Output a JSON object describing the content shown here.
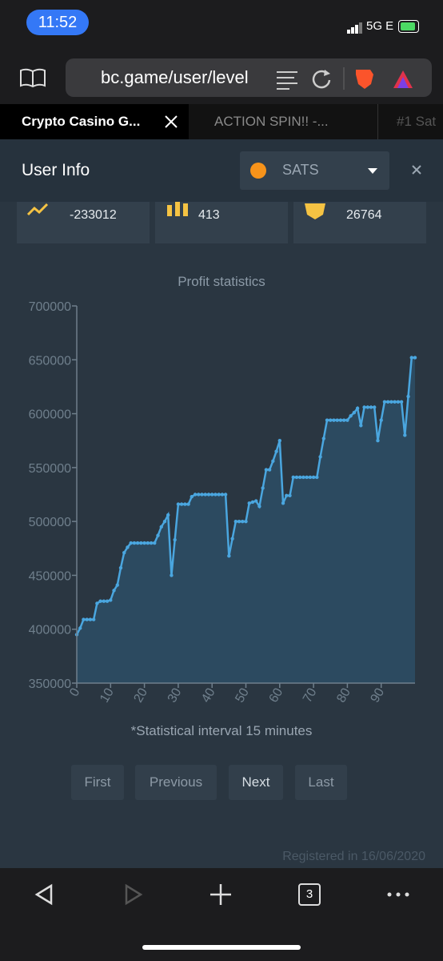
{
  "status_bar": {
    "time": "11:52",
    "network": "5G E"
  },
  "browser": {
    "url": "bc.game/user/level",
    "tabs": [
      "Crypto Casino G...",
      "ACTION SPIN!! -...",
      "#1 Sat"
    ],
    "tab_count": 3
  },
  "modal": {
    "title": "User Info",
    "currency": "SATS",
    "stats": [
      -233012,
      413,
      26764
    ],
    "note": "*Statistical interval 15 minutes",
    "buttons": [
      "First",
      "Previous",
      "Next",
      "Last"
    ],
    "registered": "Registered in 16/06/2020"
  },
  "chart_data": {
    "type": "area",
    "title": "Profit statistics",
    "color": "#4aa6df",
    "fill": "#2c4a60",
    "x": [
      0,
      1,
      2,
      3,
      4,
      5,
      6,
      7,
      8,
      9,
      10,
      11,
      12,
      13,
      14,
      15,
      16,
      17,
      18,
      19,
      20,
      21,
      22,
      23,
      24,
      25,
      26,
      27,
      28,
      29,
      30,
      31,
      32,
      33,
      34,
      35,
      36,
      37,
      38,
      39,
      40,
      41,
      42,
      43,
      44,
      45,
      46,
      47,
      48,
      49,
      50,
      51,
      52,
      53,
      54,
      55,
      56,
      57,
      58,
      59,
      60,
      61,
      62,
      63,
      64,
      65,
      66,
      67,
      68,
      69,
      70,
      71,
      72,
      73,
      74,
      75,
      76,
      77,
      78,
      79,
      80,
      81,
      82,
      83,
      84,
      85,
      86,
      87,
      88,
      89,
      90,
      91,
      92,
      93,
      94,
      95,
      96,
      97,
      98,
      99,
      100
    ],
    "values": [
      395000,
      401000,
      409000,
      409000,
      409000,
      409000,
      424000,
      426000,
      426000,
      426000,
      427000,
      436000,
      441000,
      457000,
      471000,
      476000,
      480000,
      480000,
      480000,
      480000,
      480000,
      480000,
      480000,
      480000,
      487000,
      495000,
      500000,
      506000,
      450000,
      483000,
      516000,
      516000,
      516000,
      516000,
      523000,
      525000,
      525000,
      525000,
      525000,
      525000,
      525000,
      525000,
      525000,
      525000,
      525000,
      468000,
      484000,
      500000,
      500000,
      500000,
      500000,
      517000,
      518000,
      519000,
      514000,
      531000,
      548000,
      548000,
      556000,
      565000,
      575000,
      517000,
      524000,
      524000,
      541000,
      541000,
      541000,
      541000,
      541000,
      541000,
      541000,
      541000,
      560000,
      577000,
      594000,
      594000,
      594000,
      594000,
      594000,
      594000,
      594000,
      598000,
      601000,
      605000,
      589000,
      606000,
      606000,
      606000,
      606000,
      575000,
      594000,
      611000,
      611000,
      611000,
      611000,
      611000,
      611000,
      580000,
      616000,
      652000,
      652000
    ],
    "xlim": [
      0,
      100
    ],
    "xticks": [
      0,
      10,
      20,
      30,
      40,
      50,
      60,
      70,
      80,
      90
    ],
    "ylim": [
      350000,
      700000
    ],
    "yticks": [
      350000,
      400000,
      450000,
      500000,
      550000,
      600000,
      650000,
      700000
    ]
  }
}
